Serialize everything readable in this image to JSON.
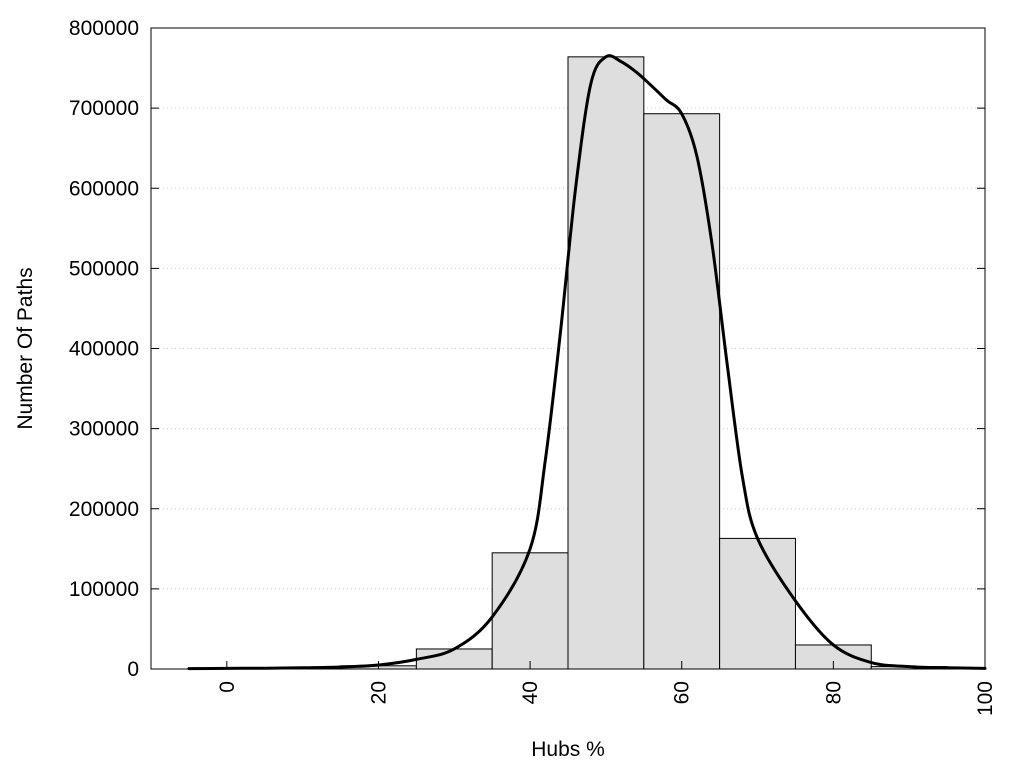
{
  "chart_data": {
    "type": "bar",
    "xlabel": "Hubs %",
    "ylabel": "Number Of Paths",
    "xlim": [
      -10,
      100
    ],
    "ylim": [
      0,
      800000
    ],
    "xticks": [
      0,
      20,
      40,
      60,
      80,
      100
    ],
    "xtick_labels": [
      "0",
      "20",
      "40",
      "60",
      "80",
      "100"
    ],
    "yticks": [
      0,
      100000,
      200000,
      300000,
      400000,
      500000,
      600000,
      700000,
      800000
    ],
    "ytick_labels": [
      "0",
      "100000",
      "200000",
      "300000",
      "400000",
      "500000",
      "600000",
      "700000",
      "800000"
    ],
    "grid": "horizontal-dotted",
    "legend": "none",
    "series": [
      {
        "kind": "histogram",
        "bin_width": 10,
        "bin_centers": [
          0,
          10,
          20,
          30,
          40,
          50,
          60,
          70,
          80,
          90
        ],
        "values": [
          500,
          1500,
          4000,
          25000,
          145000,
          764000,
          693000,
          163000,
          30000,
          3000
        ]
      },
      {
        "kind": "smooth-line",
        "x": [
          -5,
          0,
          5,
          10,
          15,
          20,
          25,
          30,
          35,
          40,
          42,
          44,
          46,
          48,
          50,
          52,
          54,
          56,
          58,
          60,
          62,
          64,
          66,
          68,
          70,
          75,
          80,
          85,
          90,
          95,
          100
        ],
        "y": [
          500,
          800,
          1000,
          1500,
          2500,
          5000,
          12000,
          25000,
          65000,
          150000,
          260000,
          420000,
          600000,
          730000,
          764000,
          758000,
          745000,
          728000,
          710000,
          693000,
          640000,
          530000,
          380000,
          240000,
          163000,
          85000,
          30000,
          8000,
          3000,
          1500,
          800
        ]
      }
    ],
    "colors": {
      "bar_fill": "#dedede",
      "bar_stroke": "#000000",
      "line": "#000000",
      "grid": "#cccccc",
      "frame": "#000000"
    }
  }
}
